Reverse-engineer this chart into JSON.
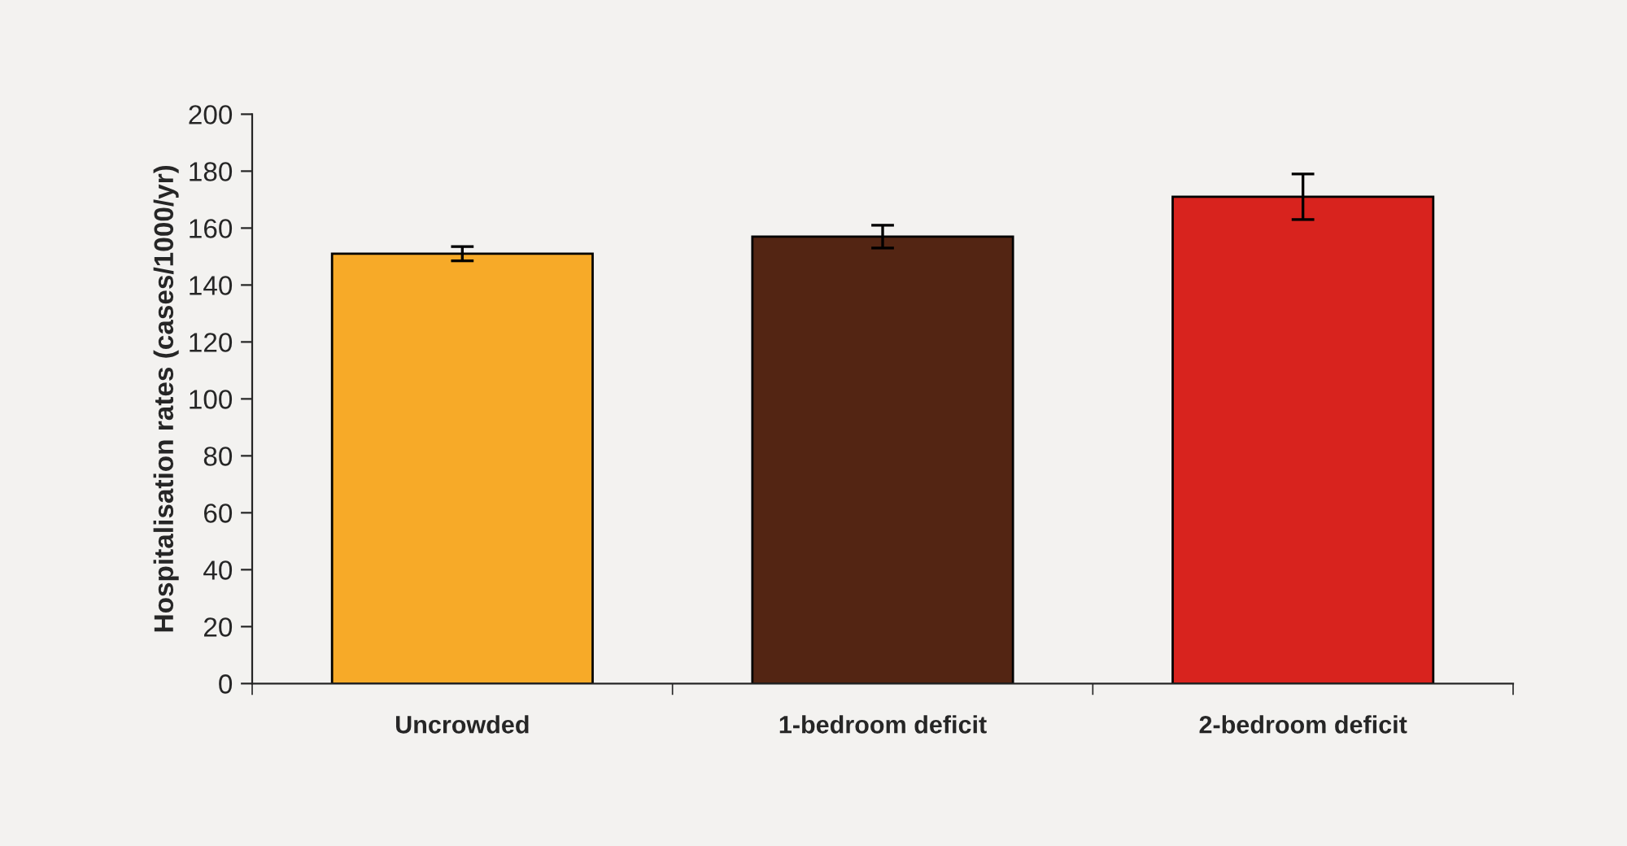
{
  "chart_data": {
    "type": "bar",
    "ylabel": "Hospitalisation rates (cases/1000/yr)",
    "categories": [
      "Uncrowded",
      "1-bedroom deficit",
      "2-bedroom deficit"
    ],
    "values": [
      151,
      157,
      171
    ],
    "colors": [
      "#f7aa28",
      "#532513",
      "#d8231e"
    ],
    "errors": [
      2.5,
      4,
      8
    ],
    "ylim": [
      0,
      200
    ],
    "yticks": [
      0,
      20,
      40,
      60,
      80,
      100,
      120,
      140,
      160,
      180,
      200
    ],
    "grid": false
  }
}
